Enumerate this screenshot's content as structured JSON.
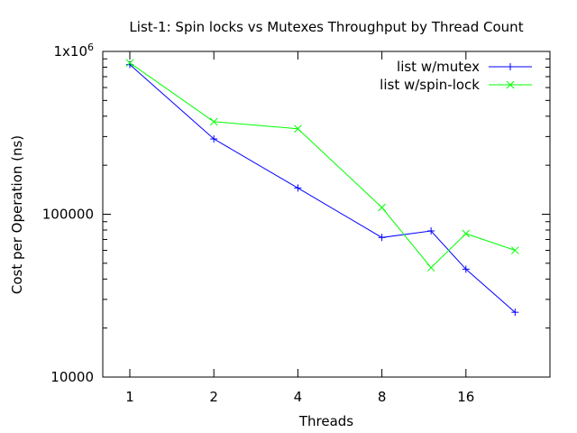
{
  "chart_data": {
    "type": "line",
    "title": "List-1: Spin locks vs Mutexes Throughput by Thread Count",
    "xlabel": "Threads",
    "ylabel": "Cost per Operation (ns)",
    "x_scale": "log2",
    "y_scale": "log10",
    "xlim": [
      0.8,
      32
    ],
    "ylim": [
      10000,
      1000000
    ],
    "x_ticks": [
      1,
      2,
      4,
      8,
      16
    ],
    "x_tick_labels": [
      "1",
      "2",
      "4",
      "8",
      "16"
    ],
    "y_ticks": [
      10000,
      100000,
      1000000
    ],
    "y_tick_labels": [
      "10000",
      "100000",
      "1x10"
    ],
    "y_tick_superscript": "6",
    "legend_position": "top-right",
    "grid": false,
    "series": [
      {
        "name": "list w/mutex",
        "color": "#0000ff",
        "marker": "plus",
        "x": [
          1,
          2,
          4,
          8,
          12,
          16,
          24
        ],
        "y": [
          830000,
          290000,
          145000,
          72000,
          79000,
          46000,
          25000
        ]
      },
      {
        "name": "list w/spin-lock",
        "color": "#00ff00",
        "marker": "cross",
        "x": [
          1,
          2,
          4,
          8,
          12,
          16,
          24
        ],
        "y": [
          850000,
          370000,
          335000,
          110000,
          47000,
          76000,
          60000
        ]
      }
    ]
  }
}
